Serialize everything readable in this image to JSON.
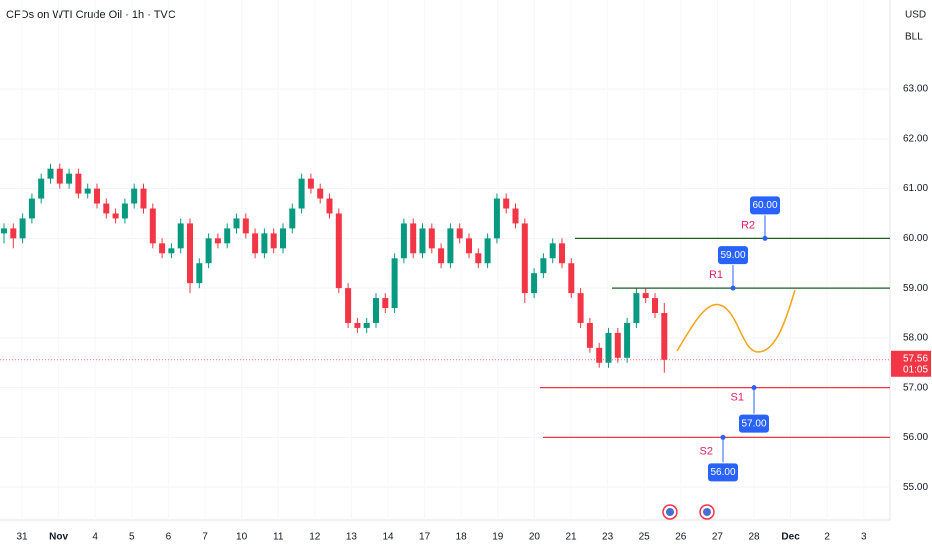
{
  "chart_data": {
    "type": "candlestick",
    "title": "CFDs on WTI Crude Oil · 1h · TVC",
    "currency": "USD",
    "unit": "BLL",
    "up_color": "#089981",
    "down_color": "#f23645",
    "ylim": [
      54.34,
      64.79
    ],
    "yticks": [
      {
        "value": 55,
        "label": "55.00"
      },
      {
        "value": 56,
        "label": "56.00"
      },
      {
        "value": 57,
        "label": "57.00"
      },
      {
        "value": 58,
        "label": "58.00"
      },
      {
        "value": 59,
        "label": "59.00"
      },
      {
        "value": 60,
        "label": "60.00"
      },
      {
        "value": 61,
        "label": "61.00"
      },
      {
        "value": 62,
        "label": "62.00"
      },
      {
        "value": 63,
        "label": "63.00"
      }
    ],
    "categories": [
      "31",
      "Nov",
      "4",
      "5",
      "6",
      "7",
      "10",
      "11",
      "12",
      "13",
      "14",
      "17",
      "18",
      "19",
      "20",
      "21",
      "23",
      "25",
      "26",
      "27",
      "28",
      "Dec",
      "2",
      "3"
    ],
    "ohlc": [
      [
        60.1,
        60.3,
        59.9,
        60.2
      ],
      [
        60.2,
        60.3,
        59.8,
        60.0
      ],
      [
        60.0,
        60.5,
        59.9,
        60.4
      ],
      [
        60.4,
        60.9,
        60.3,
        60.8
      ],
      [
        60.8,
        61.3,
        60.7,
        61.2
      ],
      [
        61.2,
        61.5,
        61.1,
        61.4
      ],
      [
        61.4,
        61.5,
        61.0,
        61.1
      ],
      [
        61.1,
        61.4,
        61.0,
        61.3
      ],
      [
        61.3,
        61.4,
        60.8,
        60.9
      ],
      [
        60.9,
        61.1,
        60.8,
        61.0
      ],
      [
        61.0,
        61.1,
        60.6,
        60.7
      ],
      [
        60.7,
        60.8,
        60.4,
        60.5
      ],
      [
        60.5,
        60.6,
        60.3,
        60.4
      ],
      [
        60.4,
        60.8,
        60.3,
        60.7
      ],
      [
        60.7,
        61.1,
        60.6,
        61.0
      ],
      [
        61.0,
        61.1,
        60.5,
        60.6
      ],
      [
        60.6,
        60.7,
        59.8,
        59.9
      ],
      [
        59.9,
        60.0,
        59.6,
        59.7
      ],
      [
        59.7,
        59.9,
        59.6,
        59.8
      ],
      [
        59.8,
        60.4,
        59.7,
        60.3
      ],
      [
        60.3,
        60.4,
        58.9,
        59.1
      ],
      [
        59.1,
        59.6,
        59.0,
        59.5
      ],
      [
        59.5,
        60.1,
        59.4,
        60.0
      ],
      [
        60.0,
        60.1,
        59.8,
        59.9
      ],
      [
        59.9,
        60.3,
        59.8,
        60.2
      ],
      [
        60.2,
        60.5,
        60.1,
        60.4
      ],
      [
        60.4,
        60.5,
        60.0,
        60.1
      ],
      [
        60.1,
        60.2,
        59.6,
        59.7
      ],
      [
        59.7,
        60.2,
        59.6,
        60.1
      ],
      [
        60.1,
        60.2,
        59.7,
        59.8
      ],
      [
        59.8,
        60.3,
        59.7,
        60.2
      ],
      [
        60.2,
        60.7,
        60.1,
        60.6
      ],
      [
        60.6,
        61.3,
        60.5,
        61.2
      ],
      [
        61.2,
        61.3,
        60.9,
        61.0
      ],
      [
        61.0,
        61.1,
        60.7,
        60.8
      ],
      [
        60.8,
        60.9,
        60.4,
        60.5
      ],
      [
        60.5,
        60.6,
        58.9,
        59.0
      ],
      [
        59.0,
        59.1,
        58.2,
        58.3
      ],
      [
        58.3,
        58.4,
        58.1,
        58.2
      ],
      [
        58.2,
        58.4,
        58.1,
        58.3
      ],
      [
        58.3,
        58.9,
        58.2,
        58.8
      ],
      [
        58.8,
        58.9,
        58.5,
        58.6
      ],
      [
        58.6,
        59.7,
        58.5,
        59.6
      ],
      [
        59.6,
        60.4,
        59.5,
        60.3
      ],
      [
        60.3,
        60.4,
        59.6,
        59.7
      ],
      [
        59.7,
        60.3,
        59.6,
        60.2
      ],
      [
        60.2,
        60.3,
        59.7,
        59.8
      ],
      [
        59.8,
        59.9,
        59.4,
        59.5
      ],
      [
        59.5,
        60.3,
        59.4,
        60.2
      ],
      [
        60.2,
        60.3,
        59.9,
        60.0
      ],
      [
        60.0,
        60.1,
        59.6,
        59.7
      ],
      [
        59.7,
        59.8,
        59.4,
        59.5
      ],
      [
        59.5,
        60.1,
        59.4,
        60.0
      ],
      [
        60.0,
        60.9,
        59.9,
        60.8
      ],
      [
        60.8,
        60.9,
        60.5,
        60.6
      ],
      [
        60.6,
        60.7,
        60.2,
        60.3
      ],
      [
        60.3,
        60.4,
        58.7,
        58.9
      ],
      [
        58.9,
        59.4,
        58.8,
        59.3
      ],
      [
        59.3,
        59.7,
        59.2,
        59.6
      ],
      [
        59.6,
        60.0,
        59.5,
        59.9
      ],
      [
        59.9,
        60.0,
        59.4,
        59.5
      ],
      [
        59.5,
        59.6,
        58.8,
        58.9
      ],
      [
        58.9,
        59.0,
        58.2,
        58.3
      ],
      [
        58.3,
        58.4,
        57.7,
        57.8
      ],
      [
        57.8,
        57.9,
        57.4,
        57.5
      ],
      [
        57.5,
        58.2,
        57.4,
        58.1
      ],
      [
        58.1,
        58.2,
        57.5,
        57.6
      ],
      [
        57.6,
        58.4,
        57.5,
        58.3
      ],
      [
        58.3,
        59.0,
        58.2,
        58.9
      ],
      [
        58.9,
        59.0,
        58.7,
        58.8
      ],
      [
        58.8,
        58.9,
        58.4,
        58.5
      ],
      [
        58.5,
        58.7,
        57.3,
        57.56
      ]
    ],
    "last_price": 57.56,
    "countdown": "01:05",
    "levels": {
      "names": [
        "R2",
        "R1",
        "S1",
        "S2"
      ],
      "values": [
        60,
        59,
        57,
        56
      ],
      "value_labels": [
        "60.00",
        "59.00",
        "57.00",
        "56.00"
      ],
      "colors": [
        "#1b5e20",
        "#1b5e20",
        "#f23645",
        "#f23645"
      ]
    }
  }
}
